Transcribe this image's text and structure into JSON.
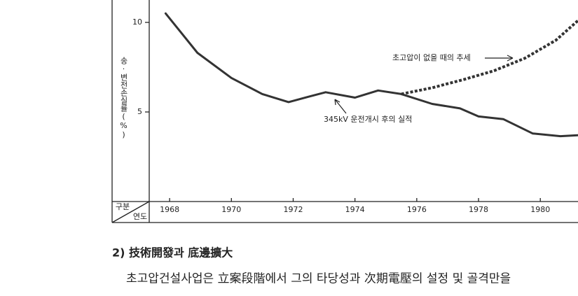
{
  "chart_data": {
    "type": "line",
    "ylabel": "송·변전손실률(%)",
    "corner_top": "구분",
    "corner_bottom": "연도",
    "xlim": [
      1967.34,
      1981.22
    ],
    "xticks": [
      1968,
      1970,
      1972,
      1974,
      1976,
      1978,
      1980
    ],
    "ylim": [
      0,
      11.25
    ],
    "yticks": [
      5,
      10
    ],
    "series": [
      {
        "name": "345kV 운전개시 후의 실적",
        "color": "#333333",
        "style": "solid",
        "x": [
          1967.87,
          1968.9,
          1970,
          1971,
          1971.85,
          1972.5,
          1973.05,
          1974,
          1974.75,
          1975.5,
          1976.5,
          1977.4,
          1978,
          1978.8,
          1979.75,
          1980.65,
          1981.22
        ],
        "values": [
          10.5,
          8.3,
          6.9,
          6.0,
          5.55,
          5.85,
          6.1,
          5.8,
          6.2,
          6.0,
          5.45,
          5.2,
          4.75,
          4.6,
          3.8,
          3.65,
          3.7
        ]
      },
      {
        "name": "초고압이 없을 때의 추세",
        "color": "#333333",
        "style": "dashed",
        "x": [
          1975.5,
          1976.5,
          1977.5,
          1978.5,
          1979.5,
          1980.5,
          1981.22
        ],
        "values": [
          6.0,
          6.35,
          6.8,
          7.3,
          8.0,
          9.0,
          10.1
        ]
      }
    ]
  },
  "section": {
    "heading": "2) 技術開發과 底邊擴大",
    "paragraph": "초고압건설사업은 立案段階에서 그의 타당성과 次期電壓의 설정 및 골격만을"
  }
}
